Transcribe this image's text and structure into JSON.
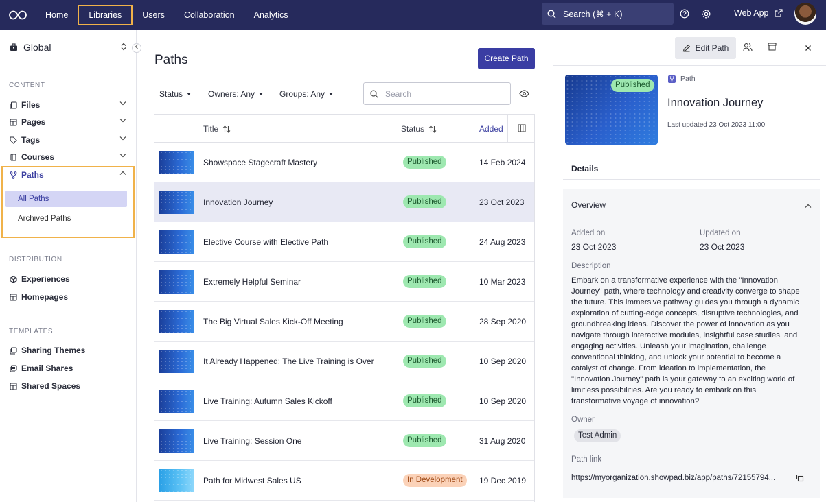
{
  "topnav": {
    "items": [
      "Home",
      "Libraries",
      "Users",
      "Collaboration",
      "Analytics"
    ],
    "search_label": "Search (⌘ + K)",
    "webapp_label": "Web App"
  },
  "sidebar": {
    "workspace": "Global",
    "sections": {
      "content": "CONTENT",
      "distribution": "DISTRIBUTION",
      "templates": "TEMPLATES"
    },
    "content_items": [
      "Files",
      "Pages",
      "Tags",
      "Courses",
      "Paths"
    ],
    "path_subitems": [
      "All Paths",
      "Archived Paths"
    ],
    "distribution_items": [
      "Experiences",
      "Homepages"
    ],
    "template_items": [
      "Sharing Themes",
      "Email Shares",
      "Shared Spaces"
    ]
  },
  "main": {
    "title": "Paths",
    "create_label": "Create Path",
    "filters": [
      "Status",
      "Owners: Any",
      "Groups: Any"
    ],
    "search_placeholder": "Search",
    "columns": {
      "title": "Title",
      "status": "Status",
      "added": "Added"
    },
    "rows": [
      {
        "title": "Showspace Stagecraft Mastery",
        "status": "Published",
        "date": "14 Feb 2024"
      },
      {
        "title": "Innovation Journey",
        "status": "Published",
        "date": "23 Oct 2023"
      },
      {
        "title": "Elective Course with Elective Path",
        "status": "Published",
        "date": "24 Aug 2023"
      },
      {
        "title": "Extremely Helpful Seminar",
        "status": "Published",
        "date": "10 Mar 2023"
      },
      {
        "title": "The Big Virtual Sales Kick-Off Meeting",
        "status": "Published",
        "date": "28 Sep 2020"
      },
      {
        "title": "It Already Happened: The Live Training is Over",
        "status": "Published",
        "date": "10 Sep 2020"
      },
      {
        "title": "Live Training: Autumn Sales Kickoff",
        "status": "Published",
        "date": "10 Sep 2020"
      },
      {
        "title": "Live Training: Session One",
        "status": "Published",
        "date": "31 Aug 2020"
      },
      {
        "title": "Path for Midwest Sales US",
        "status": "In Development",
        "date": "19 Dec 2019"
      }
    ]
  },
  "detail": {
    "edit_label": "Edit Path",
    "badge": "Published",
    "type": "Path",
    "title": "Innovation Journey",
    "updated": "Last updated 23 Oct 2023 11:00",
    "tab": "Details",
    "overview": "Overview",
    "added_label": "Added on",
    "added_value": "23 Oct 2023",
    "updated_label": "Updated on",
    "updated_value": "23 Oct 2023",
    "description_label": "Description",
    "description": "Embark on a transformative experience with the \"Innovation Journey\" path, where technology and creativity converge to shape the future. This immersive pathway guides you through a dynamic exploration of cutting-edge concepts, disruptive technologies, and groundbreaking ideas. Discover the power of innovation as you navigate through interactive modules, insightful case studies, and engaging activities. Unleash your imagination, challenge conventional thinking, and unlock your potential to become a catalyst of change. From ideation to implementation, the \"Innovation Journey\" path is your gateway to an exciting world of limitless possibilities. Are you ready to embark on this transformative voyage of innovation?",
    "owner_label": "Owner",
    "owner": "Test Admin",
    "link_label": "Path link",
    "link": "https://myorganization.showpad.biz/app/paths/72155794..."
  },
  "colors": {
    "topbar": "#262a5c",
    "accent": "#3a3da3",
    "highlight": "#f0b24a",
    "published_bg": "#9ee8b0",
    "dev_bg": "#fbd2b8"
  }
}
